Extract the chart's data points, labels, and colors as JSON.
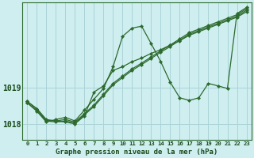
{
  "xlabel": "Graphe pression niveau de la mer (hPa)",
  "background_color": "#ceeef0",
  "grid_color": "#aad4d8",
  "line_color": "#2d6a2d",
  "ylim_min": 1017.55,
  "ylim_max": 1021.35,
  "yticks": [
    1018,
    1019
  ],
  "xticks": [
    0,
    1,
    2,
    3,
    4,
    5,
    6,
    7,
    8,
    9,
    10,
    11,
    12,
    13,
    14,
    15,
    16,
    17,
    18,
    19,
    20,
    21,
    22,
    23
  ],
  "s1": [
    1018.58,
    1018.35,
    1018.05,
    1018.12,
    1018.18,
    1018.08,
    1018.38,
    1018.68,
    1018.98,
    1019.58,
    1020.42,
    1020.65,
    1020.7,
    1020.22,
    1019.72,
    1019.15,
    1018.72,
    1018.65,
    1018.72,
    1019.12,
    1019.05,
    1018.98,
    1021.05,
    1021.22
  ],
  "s2": [
    1018.62,
    1018.42,
    1018.12,
    1018.08,
    1018.12,
    1018.05,
    1018.28,
    1018.52,
    1018.82,
    1019.12,
    1019.32,
    1019.52,
    1019.68,
    1019.85,
    1020.02,
    1020.18,
    1020.35,
    1020.52,
    1020.62,
    1020.72,
    1020.82,
    1020.92,
    1021.02,
    1021.18
  ],
  "s3": [
    1018.58,
    1018.38,
    1018.08,
    1018.05,
    1018.08,
    1018.02,
    1018.25,
    1018.48,
    1018.78,
    1019.08,
    1019.28,
    1019.48,
    1019.64,
    1019.81,
    1019.98,
    1020.14,
    1020.31,
    1020.48,
    1020.58,
    1020.68,
    1020.78,
    1020.88,
    1020.98,
    1021.14
  ],
  "s4": [
    1018.62,
    1018.42,
    1018.1,
    1018.08,
    1018.05,
    1018.0,
    1018.22,
    1018.88,
    1019.05,
    1019.48,
    1019.58,
    1019.72,
    1019.82,
    1019.95,
    1020.05,
    1020.18,
    1020.3,
    1020.45,
    1020.55,
    1020.65,
    1020.75,
    1020.85,
    1020.95,
    1021.1
  ]
}
